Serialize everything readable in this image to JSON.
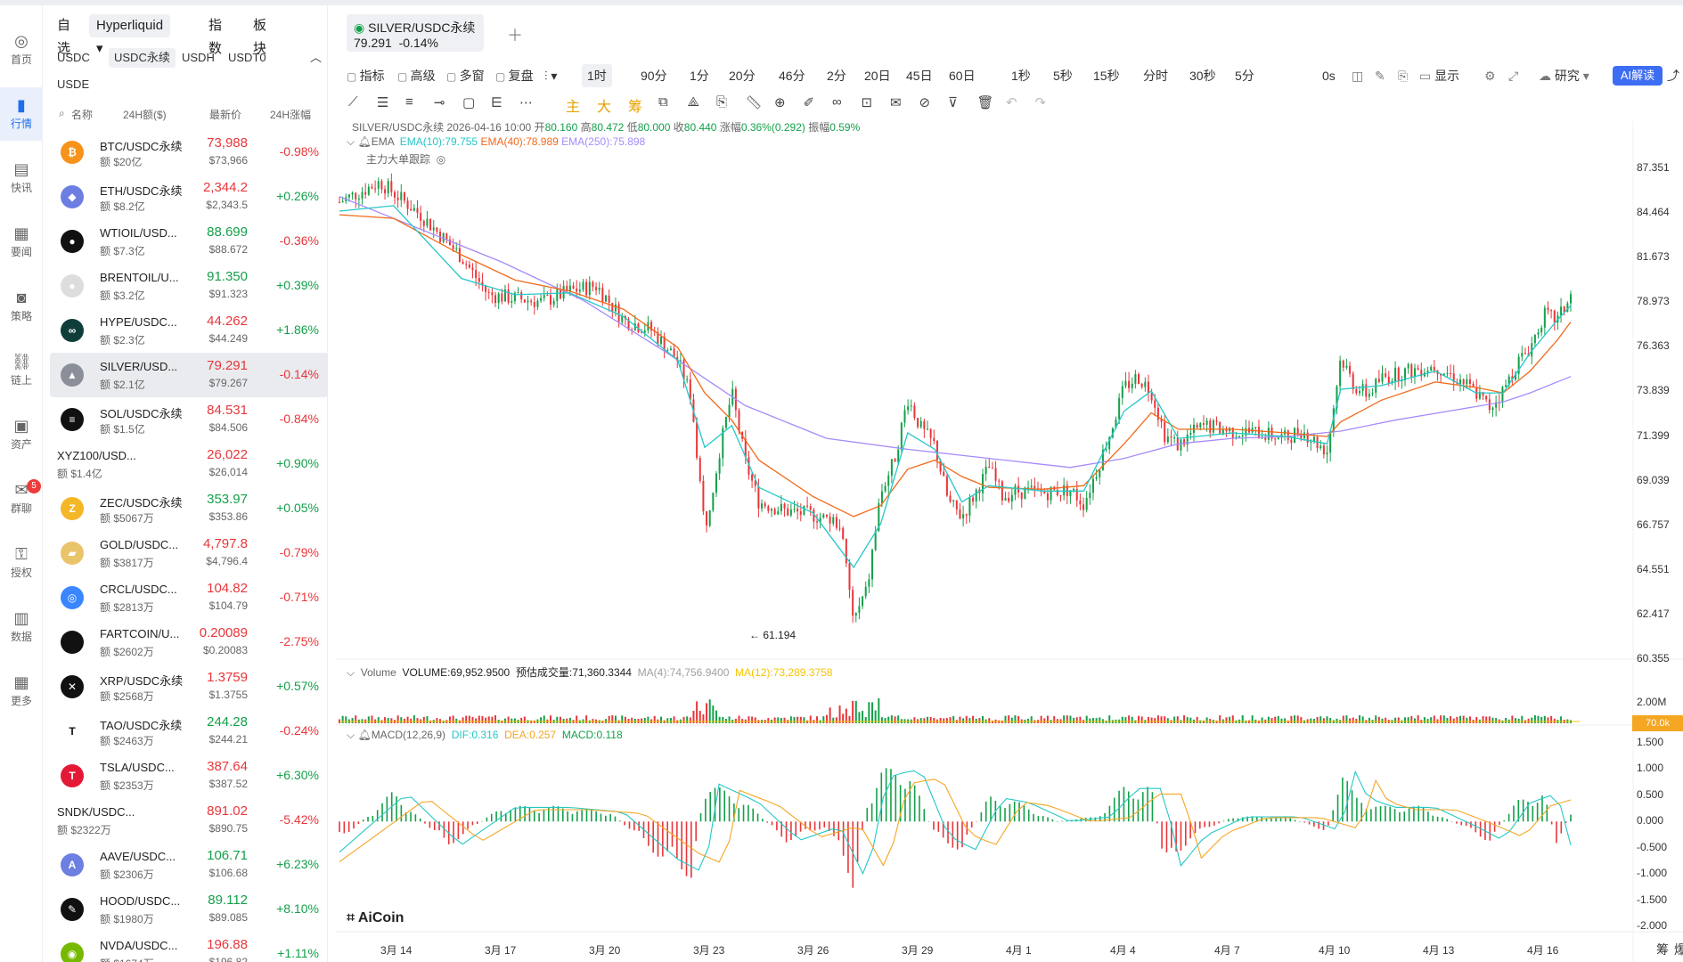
{
  "nav": [
    {
      "label": "首页",
      "icon": "home-icon"
    },
    {
      "label": "行情",
      "icon": "chart-icon",
      "active": true
    },
    {
      "label": "快讯",
      "icon": "news-icon"
    },
    {
      "label": "要闻",
      "icon": "document-icon"
    },
    {
      "label": "策略",
      "icon": "robot-icon"
    },
    {
      "label": "链上",
      "icon": "chain-icon"
    },
    {
      "label": "资产",
      "icon": "wallet-icon"
    },
    {
      "label": "群聊",
      "icon": "chat-icon",
      "badge": "5"
    },
    {
      "label": "授权",
      "icon": "key-icon"
    },
    {
      "label": "数据",
      "icon": "data-icon"
    },
    {
      "label": "更多",
      "icon": "grid-icon"
    }
  ],
  "market": {
    "tabs": [
      "自选",
      "Hyperliquid",
      "指数",
      "板块"
    ],
    "subtabs": [
      "USDC",
      "USDC永续",
      "USDH",
      "USDT0",
      "USDE"
    ],
    "headers": {
      "name": "名称",
      "volume": "24H额($)",
      "price": "最新价",
      "change": "24H涨幅"
    },
    "rows": [
      {
        "sym": "BTC/USDC永续",
        "vol": "额 $20亿",
        "px": "73,988",
        "px2": "$73,966",
        "chg": "-0.98%",
        "dir": "dn",
        "icon": "₿",
        "color": "#f7931a"
      },
      {
        "sym": "ETH/USDC永续",
        "vol": "额 $8.2亿",
        "px": "2,344.2",
        "px2": "$2,343.5",
        "chg": "+0.26%",
        "dir": "dn",
        "icon": "◆",
        "color": "#6c7ee1"
      },
      {
        "sym": "WTIOIL/USD...",
        "vol": "额 $7.3亿",
        "px": "88.699",
        "px2": "$88.672",
        "chg": "-0.36%",
        "dir": "up",
        "icon": "●",
        "color": "#111"
      },
      {
        "sym": "BRENTOIL/U...",
        "vol": "额 $3.2亿",
        "px": "91.350",
        "px2": "$91.323",
        "chg": "+0.39%",
        "dir": "up",
        "icon": "●",
        "color": "#ddd"
      },
      {
        "sym": "HYPE/USDC...",
        "vol": "额 $2.3亿",
        "px": "44.262",
        "px2": "$44.249",
        "chg": "+1.86%",
        "dir": "dn",
        "icon": "∞",
        "color": "#0f3d3a"
      },
      {
        "sym": "SILVER/USD...",
        "vol": "额 $2.1亿",
        "px": "79.291",
        "px2": "$79.267",
        "chg": "-0.14%",
        "dir": "dn",
        "icon": "▲",
        "color": "#8a8f99",
        "sel": true
      },
      {
        "sym": "SOL/USDC永续",
        "vol": "额 $1.5亿",
        "px": "84.531",
        "px2": "$84.506",
        "chg": "-0.84%",
        "dir": "dn",
        "icon": "≡",
        "color": "#111"
      },
      {
        "sym": "XYZ100/USD...",
        "vol": "额 $1.4亿",
        "px": "26,022",
        "px2": "$26,014",
        "chg": "+0.90%",
        "dir": "dn",
        "icon": "",
        "color": "transparent"
      },
      {
        "sym": "ZEC/USDC永续",
        "vol": "额 $5067万",
        "px": "353.97",
        "px2": "$353.86",
        "chg": "+0.05%",
        "dir": "up",
        "icon": "Z",
        "color": "#f4b728"
      },
      {
        "sym": "GOLD/USDC...",
        "vol": "额 $3817万",
        "px": "4,797.8",
        "px2": "$4,796.4",
        "chg": "-0.79%",
        "dir": "dn",
        "icon": "▰",
        "color": "#e9c46a"
      },
      {
        "sym": "CRCL/USDC...",
        "vol": "额 $2813万",
        "px": "104.82",
        "px2": "$104.79",
        "chg": "-0.71%",
        "dir": "dn",
        "icon": "◎",
        "color": "#3a86ff"
      },
      {
        "sym": "FARTCOIN/U...",
        "vol": "额 $2602万",
        "px": "0.20089",
        "px2": "$0.20083",
        "chg": "-2.75%",
        "dir": "dn",
        "icon": "",
        "color": "#111"
      },
      {
        "sym": "XRP/USDC永续",
        "vol": "额 $2568万",
        "px": "1.3759",
        "px2": "$1.3755",
        "chg": "+0.57%",
        "dir": "dn",
        "icon": "✕",
        "color": "#111"
      },
      {
        "sym": "TAO/USDC永续",
        "vol": "额 $2463万",
        "px": "244.28",
        "px2": "$244.21",
        "chg": "-0.24%",
        "dir": "up",
        "icon": "T",
        "color": "#fff"
      },
      {
        "sym": "TSLA/USDC...",
        "vol": "额 $2353万",
        "px": "387.64",
        "px2": "$387.52",
        "chg": "+6.30%",
        "dir": "dn",
        "icon": "T",
        "color": "#e31937"
      },
      {
        "sym": "SNDK/USDC...",
        "vol": "额 $2322万",
        "px": "891.02",
        "px2": "$890.75",
        "chg": "-5.42%",
        "dir": "dn",
        "icon": "",
        "color": "transparent"
      },
      {
        "sym": "AAVE/USDC...",
        "vol": "额 $2306万",
        "px": "106.71",
        "px2": "$106.68",
        "chg": "+6.23%",
        "dir": "up",
        "icon": "A",
        "color": "#6d7fe0"
      },
      {
        "sym": "HOOD/USDC...",
        "vol": "额 $1980万",
        "px": "89.112",
        "px2": "$89.085",
        "chg": "+8.10%",
        "dir": "up",
        "icon": "✎",
        "color": "#111"
      },
      {
        "sym": "NVDA/USDC...",
        "vol": "额 $1674万",
        "px": "196.88",
        "px2": "$196.82",
        "chg": "+1.11%",
        "dir": "dn",
        "icon": "◉",
        "color": "#76b900"
      }
    ]
  },
  "symbol_tab": {
    "name": "SILVER/USDC永续",
    "price": "79.291",
    "change": "-0.14%"
  },
  "toolbar": {
    "left": [
      "指标",
      "高级",
      "多窗",
      "复盘"
    ],
    "intervals": [
      "1时",
      "90分",
      "1分",
      "20分",
      "46分",
      "2分",
      "20日",
      "45日",
      "60日",
      "1秒",
      "5秒",
      "15秒",
      "分时",
      "30秒",
      "5分"
    ],
    "right": [
      "0s",
      "显示",
      "研究"
    ],
    "ai": "AI解读"
  },
  "draw_colors_labels": [
    "主",
    "大",
    "筹"
  ],
  "info": {
    "line1_prefix": "SILVER/USDC永续  2026-04-16 10:00",
    "open_label": "开",
    "open": "80.160",
    "high_label": "高",
    "high": "80.472",
    "low_label": "低",
    "low": "80.000",
    "close_label": "收",
    "close": "80.440",
    "chg_label": "涨幅",
    "chg": "0.36%(0.292)",
    "amp_label": "振幅",
    "amp": "0.59%",
    "ema_label": "EMA",
    "ema10": "EMA(10):79.755",
    "ema40": "EMA(40):78.989",
    "ema250": "EMA(250):75.898",
    "whale": "主力大单跟踪",
    "volume_label": "Volume",
    "volume": "VOLUME:69,952.9500",
    "est_vol": "预估成交量:71,360.3344",
    "ma4": "MA(4):74,756.9400",
    "ma12": "MA(12):73,289.3758",
    "macd_label": "MACD(12,26,9)",
    "dif": "DIF:0.316",
    "dea": "DEA:0.257",
    "macd": "MACD:0.118",
    "low_marker": "← 61.194",
    "vol_tag": "70.0k",
    "logo": "AiCoin"
  },
  "colors": {
    "up": "#14a04a",
    "down": "#e8363a",
    "ema10": "#24c7c7",
    "ema40": "#f06a1a",
    "ema250": "#a78bfa",
    "ma12": "#f5c400"
  },
  "chart_data": {
    "type": "candlestick",
    "price_ticks": [
      "87.351",
      "84.464",
      "81.673",
      "78.973",
      "76.363",
      "73.839",
      "71.399",
      "69.039",
      "66.757",
      "64.551",
      "62.417",
      "60.355"
    ],
    "volume_ticks": [
      "2.00M"
    ],
    "macd_ticks": [
      "1.500",
      "1.000",
      "0.500",
      "0.000",
      "-0.500",
      "-1.000",
      "-1.500",
      "-2.000"
    ],
    "x_ticks": [
      "3月 14",
      "3月 17",
      "3月 20",
      "3月 23",
      "3月 26",
      "3月 29",
      "4月 1",
      "4月 4",
      "4月 7",
      "4月 10",
      "4月 13",
      "4月 16"
    ],
    "price_path": [
      [
        0,
        85.5
      ],
      [
        3,
        86.6
      ],
      [
        6,
        84.8
      ],
      [
        9,
        82.5
      ],
      [
        11,
        80.4
      ],
      [
        13,
        80.2
      ],
      [
        15,
        80.0
      ],
      [
        17,
        80.6
      ],
      [
        19,
        80.9
      ],
      [
        21,
        79.0
      ],
      [
        23,
        78.5
      ],
      [
        25,
        76.8
      ],
      [
        26,
        74.8
      ],
      [
        27,
        67.5
      ],
      [
        28,
        71.5
      ],
      [
        29,
        75.0
      ],
      [
        30,
        71.2
      ],
      [
        31,
        69.0
      ],
      [
        33,
        68.5
      ],
      [
        35,
        68.3
      ],
      [
        37,
        67.8
      ],
      [
        38,
        62.4
      ],
      [
        39,
        64.2
      ],
      [
        40,
        69.5
      ],
      [
        41,
        71.3
      ],
      [
        42,
        74.7
      ],
      [
        43,
        73.0
      ],
      [
        44,
        72.1
      ],
      [
        45,
        69.0
      ],
      [
        46,
        68.2
      ],
      [
        47,
        69.5
      ],
      [
        48,
        70.9
      ],
      [
        49,
        69.3
      ],
      [
        50,
        69.6
      ],
      [
        52,
        69.5
      ],
      [
        54,
        69.7
      ],
      [
        55,
        68.9
      ],
      [
        56,
        70.8
      ],
      [
        57,
        72.9
      ],
      [
        58,
        75.3
      ],
      [
        59,
        75.9
      ],
      [
        60,
        75.1
      ],
      [
        61,
        72.7
      ],
      [
        62,
        72.1
      ],
      [
        63,
        72.8
      ],
      [
        64,
        73.2
      ],
      [
        66,
        72.9
      ],
      [
        68,
        72.8
      ],
      [
        70,
        72.5
      ],
      [
        71,
        73.0
      ],
      [
        72,
        72.4
      ],
      [
        73,
        71.8
      ],
      [
        74,
        77.0
      ],
      [
        75,
        75.4
      ],
      [
        76,
        74.9
      ],
      [
        77,
        75.8
      ],
      [
        79,
        76.2
      ],
      [
        81,
        76.5
      ],
      [
        83,
        75.6
      ],
      [
        84,
        75.0
      ],
      [
        85,
        74.2
      ],
      [
        86,
        75.1
      ],
      [
        87,
        76.6
      ],
      [
        88,
        77.5
      ],
      [
        89,
        79.3
      ],
      [
        90,
        79.0
      ],
      [
        91,
        80.3
      ]
    ],
    "ema10": [
      [
        0,
        85.0
      ],
      [
        4,
        85.3
      ],
      [
        9,
        81.3
      ],
      [
        13,
        80.4
      ],
      [
        17,
        80.5
      ],
      [
        21,
        79.2
      ],
      [
        25,
        76.8
      ],
      [
        27,
        72.0
      ],
      [
        29,
        73.2
      ],
      [
        31,
        69.8
      ],
      [
        35,
        68.4
      ],
      [
        38,
        65.4
      ],
      [
        40,
        67.8
      ],
      [
        42,
        72.8
      ],
      [
        44,
        71.9
      ],
      [
        46,
        69.0
      ],
      [
        48,
        69.9
      ],
      [
        52,
        69.6
      ],
      [
        55,
        69.6
      ],
      [
        58,
        74.0
      ],
      [
        60,
        75.1
      ],
      [
        62,
        72.5
      ],
      [
        66,
        72.8
      ],
      [
        70,
        72.6
      ],
      [
        73,
        72.2
      ],
      [
        74,
        75.2
      ],
      [
        77,
        75.4
      ],
      [
        81,
        76.2
      ],
      [
        84,
        75.0
      ],
      [
        86,
        75.0
      ],
      [
        88,
        77.2
      ],
      [
        90,
        79.0
      ],
      [
        91,
        79.8
      ]
    ],
    "ema40": [
      [
        0,
        84.8
      ],
      [
        4,
        84.6
      ],
      [
        9,
        82.6
      ],
      [
        13,
        81.2
      ],
      [
        17,
        80.6
      ],
      [
        21,
        79.6
      ],
      [
        25,
        77.5
      ],
      [
        27,
        75.0
      ],
      [
        29,
        73.5
      ],
      [
        31,
        71.3
      ],
      [
        35,
        69.3
      ],
      [
        38,
        68.2
      ],
      [
        40,
        68.8
      ],
      [
        42,
        70.8
      ],
      [
        44,
        71.3
      ],
      [
        46,
        70.4
      ],
      [
        48,
        69.8
      ],
      [
        52,
        69.7
      ],
      [
        55,
        69.9
      ],
      [
        58,
        72.2
      ],
      [
        60,
        73.9
      ],
      [
        62,
        73.0
      ],
      [
        66,
        73.0
      ],
      [
        70,
        72.8
      ],
      [
        73,
        72.6
      ],
      [
        74,
        73.4
      ],
      [
        77,
        74.6
      ],
      [
        81,
        75.6
      ],
      [
        84,
        75.3
      ],
      [
        86,
        75.0
      ],
      [
        88,
        76.2
      ],
      [
        90,
        77.9
      ],
      [
        91,
        78.9
      ]
    ],
    "ema250": [
      [
        0,
        85.8
      ],
      [
        6,
        84.0
      ],
      [
        12,
        82.2
      ],
      [
        18,
        80.1
      ],
      [
        24,
        77.3
      ],
      [
        30,
        74.3
      ],
      [
        36,
        72.5
      ],
      [
        42,
        71.9
      ],
      [
        48,
        71.4
      ],
      [
        54,
        70.9
      ],
      [
        58,
        71.4
      ],
      [
        62,
        72.2
      ],
      [
        66,
        72.5
      ],
      [
        70,
        72.6
      ],
      [
        74,
        72.9
      ],
      [
        78,
        73.5
      ],
      [
        82,
        74.0
      ],
      [
        86,
        74.5
      ],
      [
        88,
        75.0
      ],
      [
        90,
        75.6
      ],
      [
        91,
        75.9
      ]
    ],
    "price_range": [
      60.355,
      87.351
    ],
    "macd_range": [
      -2.0,
      1.5
    ]
  }
}
